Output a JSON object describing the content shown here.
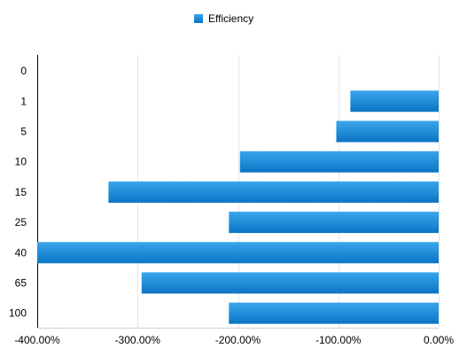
{
  "chart_data": {
    "type": "bar",
    "orientation": "horizontal",
    "categories": [
      "0",
      "1",
      "5",
      "10",
      "15",
      "25",
      "40",
      "65",
      "100"
    ],
    "series": [
      {
        "name": "Efficiency",
        "values": [
          0,
          -88,
          -102,
          -198,
          -329,
          -209,
          -400,
          -296,
          -209
        ],
        "color": "#1a8fd8"
      }
    ],
    "xlim": [
      -400,
      0
    ],
    "x_ticks": [
      -400,
      -300,
      -200,
      -100,
      0
    ],
    "x_tick_labels": [
      "-400.00%",
      "-300.00%",
      "-200.00%",
      "-100.00%",
      "0.00%"
    ],
    "title": "",
    "xlabel": "",
    "ylabel": "",
    "legend": {
      "position": "top-center"
    },
    "grid": {
      "vertical": true,
      "horizontal": false,
      "color": "#e6e6e6"
    }
  }
}
